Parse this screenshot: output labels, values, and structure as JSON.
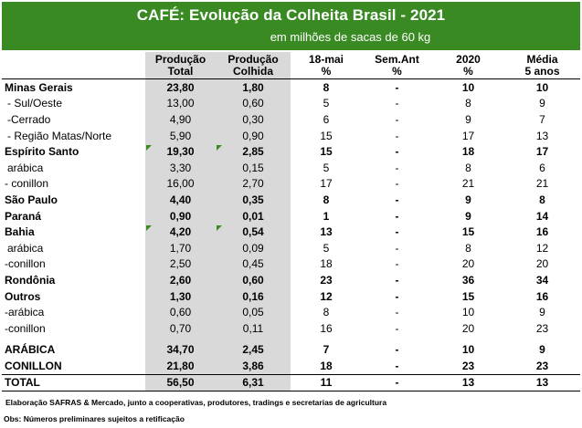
{
  "header": {
    "title": "CAFÉ: Evolução da Colheita Brasil - 2021",
    "subtitle": "em milhões de sacas de 60 kg"
  },
  "columns": [
    [
      "",
      ""
    ],
    [
      "Produção",
      "Total"
    ],
    [
      "Produção",
      "Colhida"
    ],
    [
      "18-mai",
      "%"
    ],
    [
      "Sem.Ant",
      "%"
    ],
    [
      "2020",
      "%"
    ],
    [
      "Média",
      "5 anos"
    ]
  ],
  "rows": [
    {
      "label": "Minas Gerais",
      "values": [
        "23,80",
        "1,80",
        "8",
        "-",
        "10",
        "10"
      ],
      "bold": true,
      "indent": false,
      "flag": false
    },
    {
      "label": "- Sul/Oeste",
      "values": [
        "13,00",
        "0,60",
        "5",
        "-",
        "8",
        "9"
      ],
      "bold": false,
      "indent": true,
      "flag": false
    },
    {
      "label": "-Cerrado",
      "values": [
        "4,90",
        "0,30",
        "6",
        "-",
        "9",
        "7"
      ],
      "bold": false,
      "indent": true,
      "flag": false
    },
    {
      "label": "- Região Matas/Norte",
      "values": [
        "5,90",
        "0,90",
        "15",
        "-",
        "17",
        "13"
      ],
      "bold": false,
      "indent": true,
      "flag": false
    },
    {
      "label": "Espírito Santo",
      "values": [
        "19,30",
        "2,85",
        "15",
        "-",
        "18",
        "17"
      ],
      "bold": true,
      "indent": false,
      "flag": true
    },
    {
      "label": " arábica",
      "values": [
        "3,30",
        "0,15",
        "5",
        "-",
        "8",
        "6"
      ],
      "bold": false,
      "indent": true,
      "flag": false
    },
    {
      "label": "- conillon",
      "values": [
        "16,00",
        "2,70",
        "17",
        "-",
        "21",
        "21"
      ],
      "bold": false,
      "indent": false,
      "flag": false
    },
    {
      "label": "São Paulo",
      "values": [
        "4,40",
        "0,35",
        "8",
        "-",
        "9",
        "8"
      ],
      "bold": true,
      "indent": false,
      "flag": false
    },
    {
      "label": "Paraná",
      "values": [
        "0,90",
        "0,01",
        "1",
        "-",
        "9",
        "14"
      ],
      "bold": true,
      "indent": false,
      "flag": false
    },
    {
      "label": "Bahia",
      "values": [
        "4,20",
        "0,54",
        "13",
        "-",
        "15",
        "16"
      ],
      "bold": true,
      "indent": false,
      "flag": true
    },
    {
      "label": " arábica",
      "values": [
        "1,70",
        "0,09",
        "5",
        "-",
        "8",
        "12"
      ],
      "bold": false,
      "indent": true,
      "flag": false
    },
    {
      "label": "-conillon",
      "values": [
        "2,50",
        "0,45",
        "18",
        "-",
        "20",
        "20"
      ],
      "bold": false,
      "indent": false,
      "flag": false
    },
    {
      "label": "Rondônia",
      "values": [
        "2,60",
        "0,60",
        "23",
        "-",
        "36",
        "34"
      ],
      "bold": true,
      "indent": false,
      "flag": false
    },
    {
      "label": "Outros",
      "values": [
        "1,30",
        "0,16",
        "12",
        "-",
        "15",
        "16"
      ],
      "bold": true,
      "indent": false,
      "flag": false
    },
    {
      "label": "-arábica",
      "values": [
        "0,60",
        "0,05",
        "8",
        "-",
        "10",
        "9"
      ],
      "bold": false,
      "indent": false,
      "flag": false
    },
    {
      "label": "-conillon",
      "values": [
        "0,70",
        "0,11",
        "16",
        "-",
        "20",
        "23"
      ],
      "bold": false,
      "indent": false,
      "flag": false
    }
  ],
  "summary": [
    {
      "label": "ARÁBICA",
      "values": [
        "34,70",
        "2,45",
        "7",
        "-",
        "10",
        "9"
      ]
    },
    {
      "label": "CONILLON",
      "values": [
        "21,80",
        "3,86",
        "18",
        "-",
        "23",
        "23"
      ]
    }
  ],
  "total": {
    "label": "TOTAL",
    "values": [
      "56,50",
      "6,31",
      "11",
      "-",
      "13",
      "13"
    ]
  },
  "footer": {
    "source": "Elaboração SAFRAS & Mercado, junto a cooperativas, produtores, tradings e secretarias de agricultura",
    "note": "Obs: Números preliminares sujeitos a retificação"
  },
  "colors": {
    "header_bg": "#3a8a24",
    "shade": "#d9d9d9"
  }
}
